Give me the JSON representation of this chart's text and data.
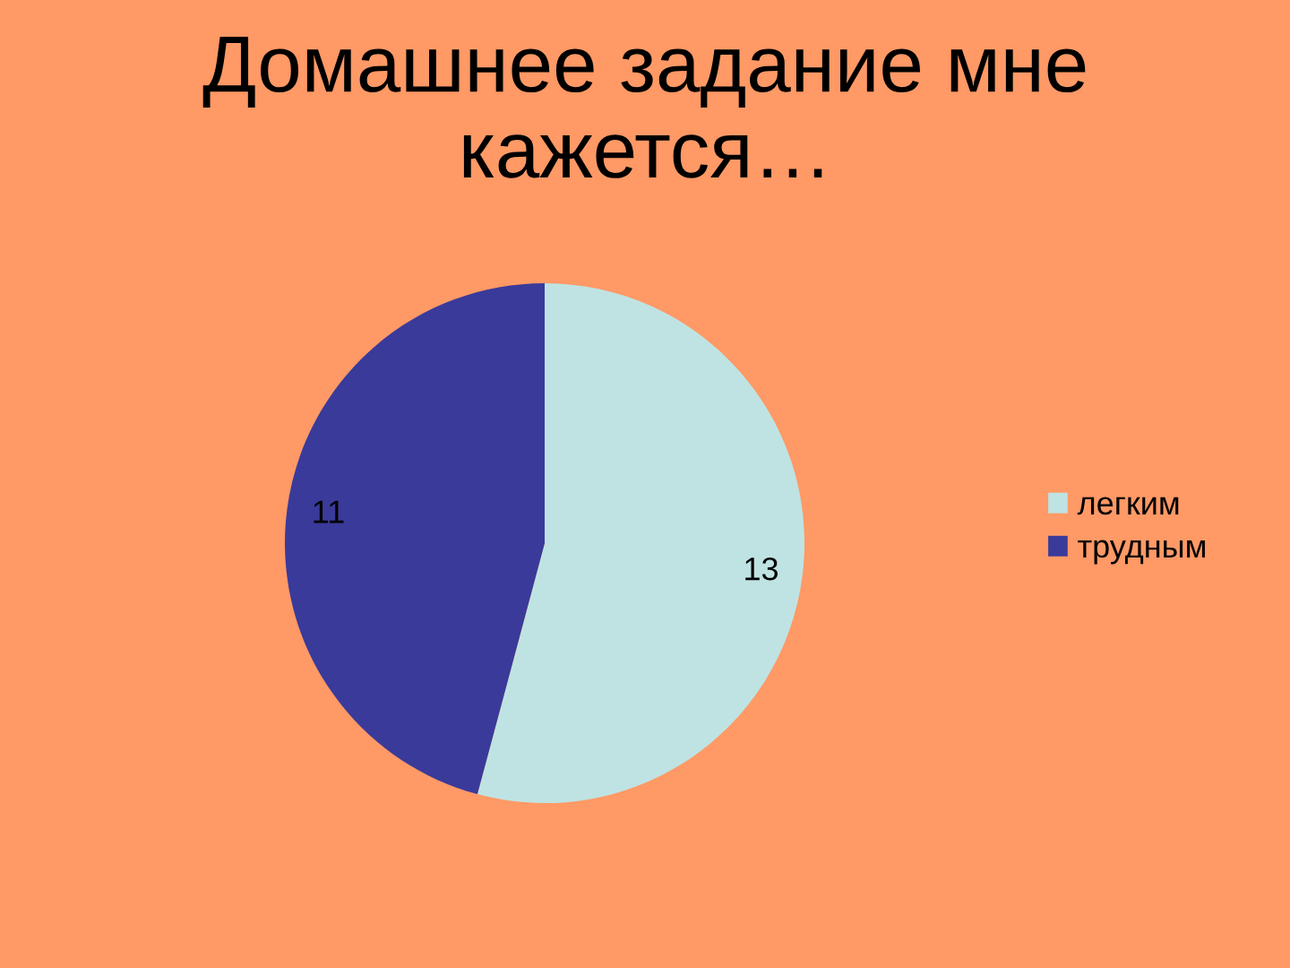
{
  "chart_data": {
    "type": "pie",
    "title": "Домашнее задание мне кажется…",
    "categories": [
      "легким",
      "трудным"
    ],
    "values": [
      13,
      11
    ],
    "colors": [
      "#bfe3e3",
      "#3a3a9a"
    ],
    "data_labels": true,
    "legend": "right"
  }
}
